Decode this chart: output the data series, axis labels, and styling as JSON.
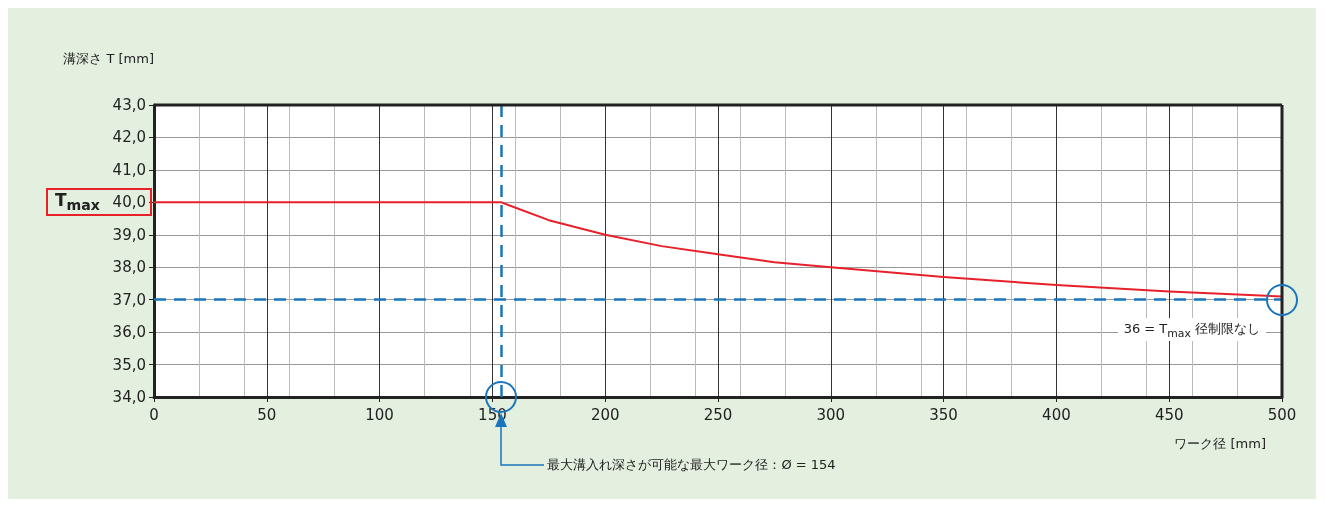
{
  "chart_data": {
    "type": "line",
    "xlabel": "ワーク径 [mm]",
    "ylabel": "溝深さ T [mm]",
    "x": [
      0,
      154,
      175,
      200,
      225,
      250,
      275,
      300,
      350,
      400,
      450,
      500
    ],
    "series": [
      {
        "color": "#e8202a",
        "values": [
          40,
          40,
          39.45,
          39.0,
          38.65,
          38.4,
          38.15,
          38.0,
          37.7,
          37.45,
          37.25,
          37.1
        ]
      }
    ],
    "xlim": [
      0,
      500
    ],
    "xticks": [
      0,
      50,
      100,
      150,
      200,
      250,
      300,
      350,
      400,
      450,
      500
    ],
    "ylim": [
      34,
      43
    ],
    "yticks": [
      {
        "value": 34,
        "label": "34,0"
      },
      {
        "value": 35,
        "label": "35,0"
      },
      {
        "value": 36,
        "label": "36,0"
      },
      {
        "value": 37,
        "label": "37,0"
      },
      {
        "value": 38,
        "label": "38,0"
      },
      {
        "value": 39,
        "label": "39,0"
      },
      {
        "value": 40,
        "label": "40,0"
      },
      {
        "value": 41,
        "label": "41,0"
      },
      {
        "value": 42,
        "label": "42,0"
      },
      {
        "value": 43,
        "label": "43,0"
      }
    ],
    "grid": true,
    "marker": "none",
    "line_style": "solid",
    "ref_lines": [
      {
        "axis": "x",
        "value": 154,
        "color": "#1a75bb",
        "line_style": "dashed"
      },
      {
        "axis": "y",
        "value": 37,
        "color": "#1a75bb",
        "line_style": "dashed"
      }
    ],
    "annotations": [
      "T$_{max}$",
      "最大溝入れ深さが可能な最大ワーク径：Ø = 154",
      {
        "text": "36 = T$_{max}$ 径制限なし",
        "x": 500,
        "y": 37
      }
    ]
  }
}
